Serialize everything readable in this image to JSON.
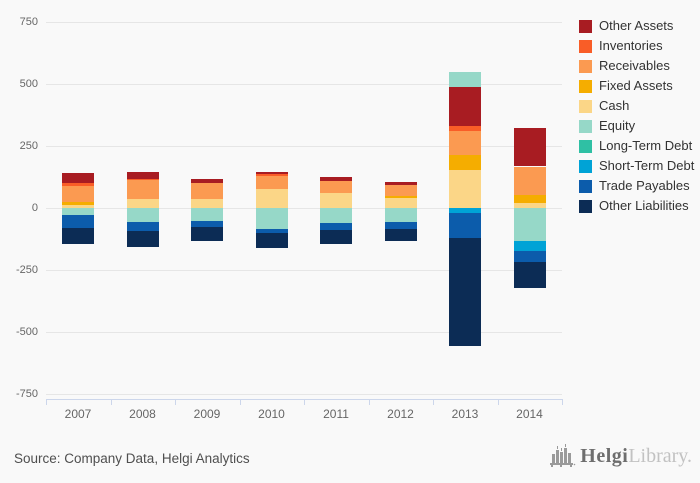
{
  "chart_data": {
    "type": "bar",
    "stacked": true,
    "title": "",
    "xlabel": "",
    "ylabel": "",
    "ylim": [
      -750,
      750
    ],
    "ytick_step": 250,
    "yticks": [
      750,
      500,
      250,
      0,
      -250,
      -500,
      -750
    ],
    "grid": true,
    "legend_position": "right",
    "categories": [
      "2007",
      "2008",
      "2009",
      "2010",
      "2011",
      "2012",
      "2013",
      "2014"
    ],
    "series": [
      {
        "name": "Other Assets",
        "color": "#a81c22",
        "values": [
          38,
          29,
          16,
          9,
          16,
          13,
          160,
          157
        ]
      },
      {
        "name": "Inventories",
        "color": "#f95d27",
        "values": [
          12,
          5,
          0,
          8,
          0,
          0,
          20,
          0
        ]
      },
      {
        "name": "Receivables",
        "color": "#fb9a51",
        "values": [
          66,
          74,
          62,
          54,
          51,
          44,
          94,
          114
        ]
      },
      {
        "name": "Fixed Assets",
        "color": "#f5ad00",
        "values": [
          10,
          0,
          0,
          0,
          0,
          8,
          60,
          34
        ]
      },
      {
        "name": "Cash",
        "color": "#fbd687",
        "values": [
          14,
          38,
          38,
          75,
          59,
          40,
          155,
          19
        ]
      },
      {
        "name": "Equity",
        "color": "#96d8c8",
        "values": [
          -30,
          -58,
          -51,
          -83,
          -62,
          -56,
          58,
          -133
        ]
      },
      {
        "name": "Long-Term Debt",
        "color": "#2fc0a4",
        "values": [
          0,
          0,
          0,
          0,
          0,
          0,
          0,
          0
        ]
      },
      {
        "name": "Short-Term Debt",
        "color": "#00a3d6",
        "values": [
          0,
          0,
          0,
          0,
          0,
          0,
          -20,
          -40
        ]
      },
      {
        "name": "Trade Payables",
        "color": "#0c5cab",
        "values": [
          -51,
          -36,
          -24,
          -19,
          -27,
          -27,
          -100,
          -46
        ]
      },
      {
        "name": "Other Liabilities",
        "color": "#0c2c55",
        "values": [
          -65,
          -64,
          -58,
          -58,
          -58,
          -50,
          -435,
          -105
        ]
      }
    ]
  },
  "footer": {
    "source": "Source: Company Data, Helgi Analytics",
    "logo_name": "Helgi",
    "logo_suffix": "Library."
  }
}
